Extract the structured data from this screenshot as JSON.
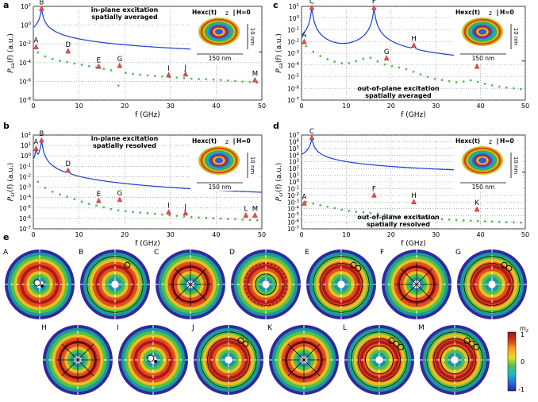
{
  "panels": [
    {
      "letter": "a",
      "title1": "in-plane excitation",
      "title2": "spatially averaged",
      "ylabel_main": "P",
      "ylabel_sub": "sa",
      "ylabel_rest": "(f) (a.u.)",
      "xlabel": "f (GHz)",
      "yticks": [
        "10^2",
        "10^0",
        "10^-2",
        "10^-4",
        "10^-6",
        "10^-8"
      ],
      "xticks": [
        "0",
        "10",
        "20",
        "30",
        "40",
        "50"
      ],
      "hexc": "Hexc(t)",
      "hzero": "H=0",
      "size_h": "150 nm",
      "size_v": "10 nm",
      "axis_z": "z",
      "peaks": [
        {
          "label": "A",
          "f": 0.6,
          "p": -3.0
        },
        {
          "label": "B",
          "f": 1.8,
          "p": 1.5
        },
        {
          "label": "D",
          "f": 7.6,
          "p": -3.5
        },
        {
          "label": "E",
          "f": 14.3,
          "p": -5.3
        },
        {
          "label": "G",
          "f": 18.9,
          "p": -5.2
        },
        {
          "label": "I",
          "f": 29.6,
          "p": -6.3
        },
        {
          "label": "J",
          "f": 33.3,
          "p": -6.2
        },
        {
          "label": "M",
          "f": 48.5,
          "p": -6.9
        }
      ],
      "ylim": [
        -9,
        2
      ],
      "baseline": {
        "f": [
          0,
          1,
          3,
          5,
          8,
          10,
          12,
          15,
          18,
          19.2,
          19.5,
          20,
          22,
          25,
          30,
          35,
          40,
          45,
          50
        ],
        "p": [
          -3.6,
          -3.4,
          -4,
          -4.3,
          -4.6,
          -4.8,
          -5.0,
          -5.3,
          -5.6,
          -9,
          -5.9,
          -5.8,
          -5.95,
          -6.1,
          -6.3,
          -6.5,
          -6.6,
          -6.8,
          -7.0
        ]
      }
    },
    {
      "letter": "b",
      "title1": "in-plane excitation",
      "title2": "spatially resolved",
      "ylabel_main": "P",
      "ylabel_sub": "sr",
      "ylabel_rest": "(f) (a.u.)",
      "xlabel": "f (GHz)",
      "yticks": [
        "10^2",
        "10^1",
        "10^0",
        "10^-1",
        "10^-2",
        "10^-3",
        "10^-4",
        "10^-5",
        "10^-6",
        "10^-7"
      ],
      "xticks": [
        "0",
        "10",
        "20",
        "30",
        "40",
        "50"
      ],
      "hexc": "Hexc(t)",
      "hzero": "H=0",
      "size_h": "150 nm",
      "size_v": "10 nm",
      "axis_z": "z",
      "peaks": [
        {
          "label": "A",
          "f": 0.6,
          "p": 0.5
        },
        {
          "label": "B",
          "f": 1.8,
          "p": 1.3
        },
        {
          "label": "D",
          "f": 7.6,
          "p": -1.6
        },
        {
          "label": "E",
          "f": 14.3,
          "p": -4.5
        },
        {
          "label": "G",
          "f": 18.9,
          "p": -4.4
        },
        {
          "label": "I",
          "f": 29.6,
          "p": -5.6
        },
        {
          "label": "J",
          "f": 33.3,
          "p": -5.7
        },
        {
          "label": "L",
          "f": 46.5,
          "p": -5.9
        },
        {
          "label": "M",
          "f": 48.5,
          "p": -5.9
        }
      ],
      "ylim": [
        -7,
        2
      ],
      "baseline": {
        "f": [
          0,
          1,
          3,
          5,
          8,
          10,
          12,
          15,
          18,
          20,
          22,
          25,
          30,
          35,
          40,
          45,
          50
        ],
        "p": [
          -2.8,
          -2.5,
          -3.2,
          -3.6,
          -4.0,
          -4.3,
          -4.6,
          -4.9,
          -5.2,
          -5.3,
          -5.4,
          -5.5,
          -5.7,
          -5.9,
          -6.0,
          -6.1,
          -6.2
        ]
      }
    },
    {
      "letter": "c",
      "title1": "out-of-plane excitation",
      "title2": "spatially averaged",
      "ylabel_main": "P",
      "ylabel_sub": "sa",
      "ylabel_rest": "(f) (a.u.)",
      "xlabel": "f (GHz)",
      "yticks": [
        "10^1",
        "10^0",
        "10^-1",
        "10^-2",
        "10^-3",
        "10^-4",
        "10^-5",
        "10^-6",
        "10^-7"
      ],
      "xticks": [
        "0",
        "10",
        "20",
        "30",
        "40",
        "50"
      ],
      "hexc": "Hexc(t)",
      "hzero": "H=0",
      "size_h": "150 nm",
      "size_v": "10 nm",
      "axis_z": "z",
      "peaks": [
        {
          "label": "A",
          "f": 0.6,
          "p": -2.2
        },
        {
          "label": "C",
          "f": 2.3,
          "p": 0.7
        },
        {
          "label": "F",
          "f": 16.2,
          "p": 0.7
        },
        {
          "label": "G",
          "f": 19.0,
          "p": -3.6
        },
        {
          "label": "H",
          "f": 25.1,
          "p": -2.5
        },
        {
          "label": "K",
          "f": 39.2,
          "p": -4.3
        }
      ],
      "ylim": [
        -7,
        1
      ],
      "baseline": {
        "f": [
          0,
          1,
          3,
          5,
          8,
          10,
          13,
          15,
          18,
          20,
          23,
          28,
          30,
          35,
          38,
          42,
          45,
          50
        ],
        "p": [
          -2.7,
          -2.4,
          -3.0,
          -3.4,
          -3.8,
          -3.9,
          -3.6,
          -3.3,
          -3.9,
          -4.1,
          -4.3,
          -5.0,
          -5.2,
          -5.5,
          -5.3,
          -5.7,
          -5.9,
          -6.1
        ]
      }
    },
    {
      "letter": "d",
      "title1": "out-of-plane excitation",
      "title2": "spatially resolved",
      "ylabel_main": "P",
      "ylabel_sub": "sr",
      "ylabel_rest": "(f) (a.u.)",
      "xlabel": "f (GHz)",
      "yticks": [
        "10^7",
        "10^6",
        "10^5",
        "10^4",
        "10^3",
        "10^2",
        "10^1",
        "10^0",
        "10^-1",
        "10^-2",
        "10^-3",
        "10^-4",
        "10^-5",
        "10^-6",
        "10^-7"
      ],
      "xticks": [
        "0",
        "10",
        "20",
        "30",
        "40",
        "50"
      ],
      "hexc": "Hexc(t)",
      "hzero": "H=0",
      "size_h": "150 nm",
      "size_v": "10 nm",
      "axis_z": "z",
      "peaks": [
        {
          "label": "A",
          "f": 0.6,
          "p": -3.5
        },
        {
          "label": "C",
          "f": 2.3,
          "p": 6.3
        },
        {
          "label": "F",
          "f": 16.2,
          "p": -2.3
        },
        {
          "label": "H",
          "f": 25.1,
          "p": -3.3
        },
        {
          "label": "K",
          "f": 39.2,
          "p": -4.4
        }
      ],
      "ylim": [
        -7,
        7
      ],
      "baseline": {
        "f": [
          0,
          1,
          3,
          5,
          8,
          10,
          13,
          15,
          18,
          20,
          23,
          28,
          30,
          35,
          38,
          42,
          45,
          50
        ],
        "p": [
          -3.7,
          -3.0,
          -3.3,
          -3.6,
          -4.0,
          -4.3,
          -4.5,
          -4.6,
          -4.8,
          -5.0,
          -5.2,
          -5.4,
          -5.5,
          -5.7,
          -5.8,
          -5.9,
          -6.0,
          -6.1
        ]
      }
    }
  ],
  "modes_label": "e",
  "modes": [
    {
      "label": "A",
      "rings": 5,
      "type": "dot"
    },
    {
      "label": "B",
      "rings": 5,
      "type": "ring"
    },
    {
      "label": "C",
      "rings": 5,
      "type": "spokes"
    },
    {
      "label": "D",
      "rings": 5,
      "type": "dashring"
    },
    {
      "label": "E",
      "rings": 5,
      "type": "ring2"
    },
    {
      "label": "F",
      "rings": 5,
      "type": "spokes"
    },
    {
      "label": "G",
      "rings": 5,
      "type": "ring2"
    },
    {
      "label": "H",
      "rings": 5,
      "type": "spokes"
    },
    {
      "label": "I",
      "rings": 4,
      "type": "dot"
    },
    {
      "label": "J",
      "rings": 5,
      "type": "ring2"
    },
    {
      "label": "K",
      "rings": 5,
      "type": "spokes"
    },
    {
      "label": "L",
      "rings": 5,
      "type": "ring3"
    },
    {
      "label": "M",
      "rings": 5,
      "type": "ring3"
    }
  ],
  "colorbar": {
    "label": "m",
    "sub": "z",
    "ticks": [
      "1",
      "0",
      "-1"
    ]
  },
  "colors": {
    "curve": "#1a3fd0",
    "dots": "#3aa53a",
    "marker": "#e05050"
  }
}
